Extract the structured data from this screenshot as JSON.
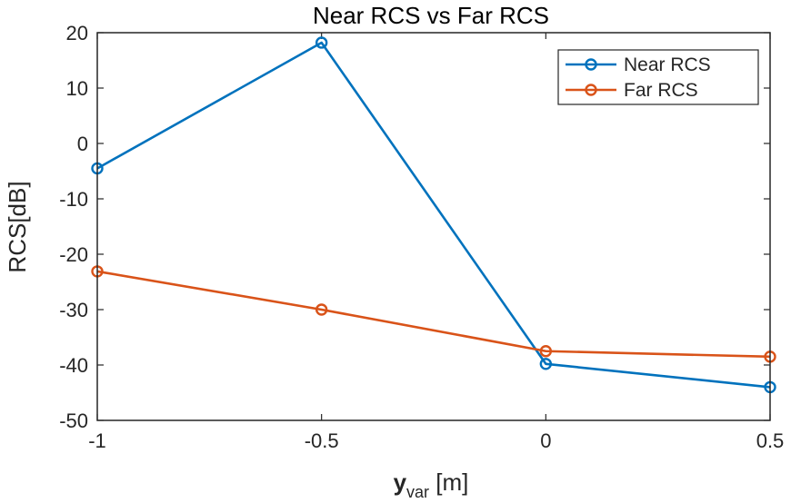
{
  "chart_data": {
    "type": "line",
    "title": "Near RCS vs Far RCS",
    "xlabel": {
      "main": "y",
      "sub": "var",
      "unit": " [m]"
    },
    "ylabel": "RCS[dB]",
    "x": [
      -1,
      -0.5,
      0,
      0.5
    ],
    "xlim": [
      -1,
      0.5
    ],
    "ylim": [
      -50,
      20
    ],
    "xticks": [
      -1,
      -0.5,
      0,
      0.5
    ],
    "xtick_labels": [
      "-1",
      "-0.5",
      "0",
      "0.5"
    ],
    "yticks": [
      -50,
      -40,
      -30,
      -20,
      -10,
      0,
      10,
      20
    ],
    "ytick_labels": [
      "-50",
      "-40",
      "-30",
      "-20",
      "-10",
      "0",
      "10",
      "20"
    ],
    "grid": false,
    "legend_position": "top-right",
    "series": [
      {
        "name": "Near RCS",
        "color": "#0072BD",
        "marker": "circle",
        "values": [
          -4.5,
          18.2,
          -39.8,
          -44
        ]
      },
      {
        "name": "Far RCS",
        "color": "#D95319",
        "marker": "circle",
        "values": [
          -23.1,
          -30,
          -37.5,
          -38.5
        ]
      }
    ]
  }
}
